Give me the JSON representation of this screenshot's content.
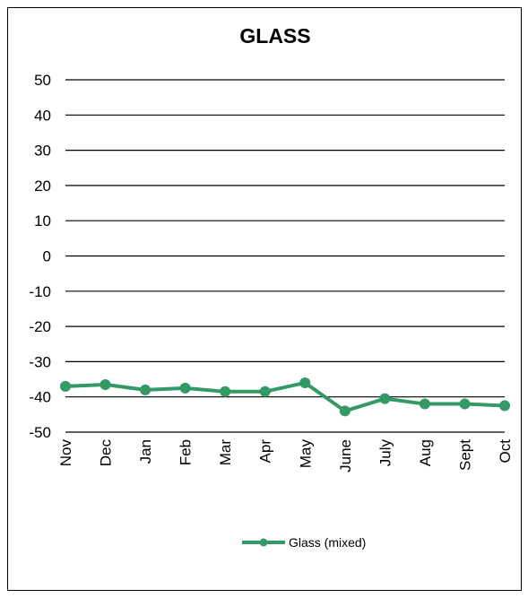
{
  "chart_data": {
    "type": "line",
    "title": "GLASS",
    "xlabel": "",
    "ylabel": "",
    "categories": [
      "Nov",
      "Dec",
      "Jan",
      "Feb",
      "Mar",
      "Apr",
      "May",
      "June",
      "July",
      "Aug",
      "Sept",
      "Oct"
    ],
    "series": [
      {
        "name": "Glass (mixed)",
        "color": "#339966",
        "values": [
          -37,
          -36.5,
          -38,
          -37.5,
          -38.5,
          -38.5,
          -36,
          -44,
          -40.5,
          -42,
          -42,
          -42.5
        ]
      }
    ],
    "ylim": [
      -50,
      50
    ],
    "yticks": [
      "50",
      "40",
      "30",
      "20",
      "10",
      "0",
      "-10",
      "-20",
      "-30",
      "-40",
      "-50"
    ],
    "grid": "horizontal",
    "legend_position": "bottom"
  }
}
